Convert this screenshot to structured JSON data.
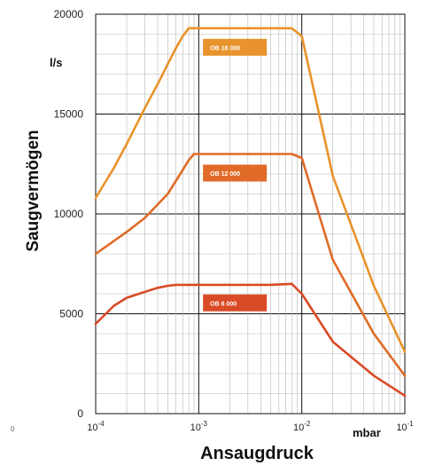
{
  "page_number": "0",
  "chart_data": {
    "type": "line",
    "xlabel": "Ansaugdruck",
    "ylabel": "Saugvermögen",
    "x_unit": "mbar",
    "y_unit": "l/s",
    "x_scale": "log",
    "xlim": [
      0.0001,
      0.1
    ],
    "ylim": [
      0,
      20000
    ],
    "x_ticks": [
      {
        "value": 0.0001,
        "base": "10",
        "exp": "-4"
      },
      {
        "value": 0.001,
        "base": "10",
        "exp": "-3"
      },
      {
        "value": 0.01,
        "base": "10",
        "exp": "-2"
      },
      {
        "value": 0.1,
        "base": "10",
        "exp": "-1"
      }
    ],
    "y_ticks": [
      {
        "value": 0,
        "label": "0"
      },
      {
        "value": 5000,
        "label": "5000"
      },
      {
        "value": 10000,
        "label": "10000"
      },
      {
        "value": 15000,
        "label": "15000"
      },
      {
        "value": 20000,
        "label": "20000"
      }
    ],
    "grid": true,
    "series": [
      {
        "name": "OB 18 000",
        "color": "#e8932b",
        "x": [
          0.0001,
          0.00015,
          0.0002,
          0.0003,
          0.0004,
          0.0005,
          0.0006,
          0.0007,
          0.0008,
          0.0009,
          0.001,
          0.002,
          0.005,
          0.008,
          0.01,
          0.02,
          0.05,
          0.1
        ],
        "y": [
          10800,
          12300,
          13500,
          15300,
          16500,
          17500,
          18300,
          18900,
          19300,
          19300,
          19300,
          19300,
          19300,
          19300,
          18900,
          11900,
          6400,
          3100
        ]
      },
      {
        "name": "OB 12 000",
        "color": "#e06b28",
        "x": [
          0.0001,
          0.0002,
          0.0003,
          0.0005,
          0.0007,
          0.0008,
          0.0009,
          0.001,
          0.002,
          0.005,
          0.008,
          0.01,
          0.02,
          0.05,
          0.1
        ],
        "y": [
          8000,
          9100,
          9800,
          11000,
          12200,
          12700,
          13000,
          13000,
          13000,
          13000,
          13000,
          12800,
          7700,
          4000,
          1900
        ]
      },
      {
        "name": "OB 6 000",
        "color": "#d94a26",
        "x": [
          0.0001,
          0.00015,
          0.0002,
          0.0003,
          0.0004,
          0.0005,
          0.0006,
          0.001,
          0.002,
          0.005,
          0.008,
          0.01,
          0.02,
          0.05,
          0.1
        ],
        "y": [
          4500,
          5400,
          5800,
          6100,
          6300,
          6400,
          6450,
          6450,
          6450,
          6450,
          6500,
          6000,
          3600,
          1900,
          900
        ]
      }
    ]
  }
}
